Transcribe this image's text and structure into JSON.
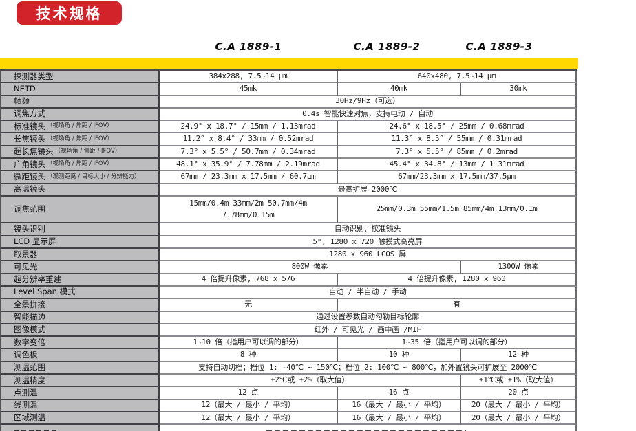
{
  "badge": {
    "label": "技术规格"
  },
  "columns": [
    "C.A 1889-1",
    "C.A 1889-2",
    "C.A 1889-3"
  ],
  "colors": {
    "accent_red": "#d2232a",
    "band_yellow": "#ffd800",
    "label_gray": "#bdbdc0"
  },
  "table": {
    "rows": [
      {
        "label": "探测器类型",
        "cells": [
          {
            "text": "384x288, 7.5~14 μm",
            "span": "c1"
          },
          {
            "text": "640x480, 7.5~14 μm",
            "span": "c2c3"
          }
        ]
      },
      {
        "label": "NETD",
        "cells": [
          {
            "text": "45mk",
            "span": "c1"
          },
          {
            "text": "40mk",
            "span": "c2"
          },
          {
            "text": "30mk",
            "span": "c3"
          }
        ]
      },
      {
        "label": "帧频",
        "cells": [
          {
            "text": "30Hz/9Hz（可选）",
            "span": "all"
          }
        ]
      },
      {
        "label": "调焦方式",
        "cells": [
          {
            "text": "0.4s 智能快速对焦，支持电动 / 自动",
            "span": "all"
          }
        ]
      },
      {
        "label": "标准镜头",
        "note": "（视场角 / 焦距 / IFOV）",
        "cells": [
          {
            "text": "24.9° x 18.7° / 15mm / 1.13mrad",
            "span": "c1"
          },
          {
            "text": "24.6° x 18.5° / 25mm / 0.68mrad",
            "span": "c2c3"
          }
        ]
      },
      {
        "label": "长焦镜头",
        "note": "（视场角 / 焦距 / IFOV）",
        "cells": [
          {
            "text": "11.2° x 8.4° / 33mm / 0.52mrad",
            "span": "c1"
          },
          {
            "text": "11.3° x 8.5° / 55mm / 0.31mrad",
            "span": "c2c3"
          }
        ]
      },
      {
        "label": "超长焦镜头",
        "note": "（视场角 / 焦距 / IFOV）",
        "cells": [
          {
            "text": "7.3° x 5.5° / 50.7mm / 0.34mrad",
            "span": "c1"
          },
          {
            "text": "7.3° x 5.5° / 85mm / 0.2mrad",
            "span": "c2c3"
          }
        ]
      },
      {
        "label": "广角镜头",
        "note": "（视场角 / 焦距 / IFOV）",
        "cells": [
          {
            "text": "48.1° x 35.9° / 7.78mm / 2.19mrad",
            "span": "c1"
          },
          {
            "text": "45.4° x 34.8° / 13mm / 1.31mrad",
            "span": "c2c3"
          }
        ]
      },
      {
        "label": "微距镜头",
        "note": "（观测距离 / 目标大小 / 分辨能力）",
        "cells": [
          {
            "text": "67mm / 23.3mm x 17.5mm / 60.7μm",
            "span": "c1"
          },
          {
            "text": "67mm/23.3mm x 17.5mm/37.5μm",
            "span": "c2c3"
          }
        ]
      },
      {
        "label": "高温镜头",
        "cells": [
          {
            "text": "最高扩展 2000℃",
            "span": "all"
          }
        ]
      },
      {
        "label": "调焦范围",
        "tall": true,
        "cells": [
          {
            "text": "15mm/0.4m 33mm/2m 50.7mm/4m\n7.78mm/0.15m",
            "span": "c1",
            "pre": true
          },
          {
            "text": "25mm/0.3m 55mm/1.5m 85mm/4m 13mm/0.1m",
            "span": "c2c3"
          }
        ]
      },
      {
        "label": "镜头识别",
        "cells": [
          {
            "text": "自动识别、校准镜头",
            "span": "all"
          }
        ]
      },
      {
        "label": "LCD 显示屏",
        "cells": [
          {
            "text": "5\", 1280 x 720 触摸式高亮屏",
            "span": "all"
          }
        ]
      },
      {
        "label": "取景器",
        "cells": [
          {
            "text": "1280 x 960 LCOS 屏",
            "span": "all"
          }
        ]
      },
      {
        "label": "可见光",
        "cells": [
          {
            "text": "800W 像素",
            "span": "c1c2"
          },
          {
            "text": "1300W 像素",
            "span": "c3"
          }
        ]
      },
      {
        "label": "超分辨率重建",
        "cells": [
          {
            "text": "4 倍提升像素, 768 x 576",
            "span": "c1"
          },
          {
            "text": "4 倍提升像素, 1280 x 960",
            "span": "c2c3"
          }
        ]
      },
      {
        "label": "Level Span 模式",
        "cells": [
          {
            "text": "自动 / 半自动 / 手动",
            "span": "all"
          }
        ]
      },
      {
        "label": "全景拼接",
        "cells": [
          {
            "text": "无",
            "span": "c1"
          },
          {
            "text": "有",
            "span": "c2c3"
          }
        ]
      },
      {
        "label": "智能描边",
        "cells": [
          {
            "text": "通过设置参数自动勾勒目标轮廓",
            "span": "all"
          }
        ]
      },
      {
        "label": "图像模式",
        "cells": [
          {
            "text": "红外 / 可见光 / 画中画 /MIF",
            "span": "all"
          }
        ]
      },
      {
        "label": "数字变倍",
        "cells": [
          {
            "text": "1~10 倍（指用户可以调的部分）",
            "span": "c1"
          },
          {
            "text": "1~35 倍（指用户可以调的部分）",
            "span": "c2c3"
          }
        ]
      },
      {
        "label": "调色板",
        "cells": [
          {
            "text": "8 种",
            "span": "c1"
          },
          {
            "text": "10 种",
            "span": "c2"
          },
          {
            "text": "12 种",
            "span": "c3"
          }
        ]
      },
      {
        "label": "测温范围",
        "cells": [
          {
            "text": "支持自动切档；档位 1: -40℃ ~ 150℃；档位 2: 100℃ ~ 800℃，加外置镜头可扩展至 2000℃",
            "span": "all"
          }
        ]
      },
      {
        "label": "测温精度",
        "cells": [
          {
            "text": "±2℃或 ±2%（取大值）",
            "span": "c1c2"
          },
          {
            "text": "±1℃或 ±1%（取大值）",
            "span": "c3"
          }
        ]
      },
      {
        "label": "点测温",
        "cells": [
          {
            "text": "12 点",
            "span": "c1"
          },
          {
            "text": "16 点",
            "span": "c2"
          },
          {
            "text": "20 点",
            "span": "c3"
          }
        ]
      },
      {
        "label": "线测温",
        "cells": [
          {
            "text": "12（最大 / 最小 / 平均）",
            "span": "c1"
          },
          {
            "text": "16（最大 / 最小 / 平均）",
            "span": "c2"
          },
          {
            "text": "20（最大 / 最小 / 平均）",
            "span": "c3"
          }
        ]
      },
      {
        "label": "区域测温",
        "cells": [
          {
            "text": "12（最大 / 最小 / 平均）",
            "span": "c1"
          },
          {
            "text": "16（最大 / 最小 / 平均）",
            "span": "c2"
          },
          {
            "text": "20（最大 / 最小 / 平均）",
            "span": "c3"
          }
        ]
      }
    ]
  }
}
